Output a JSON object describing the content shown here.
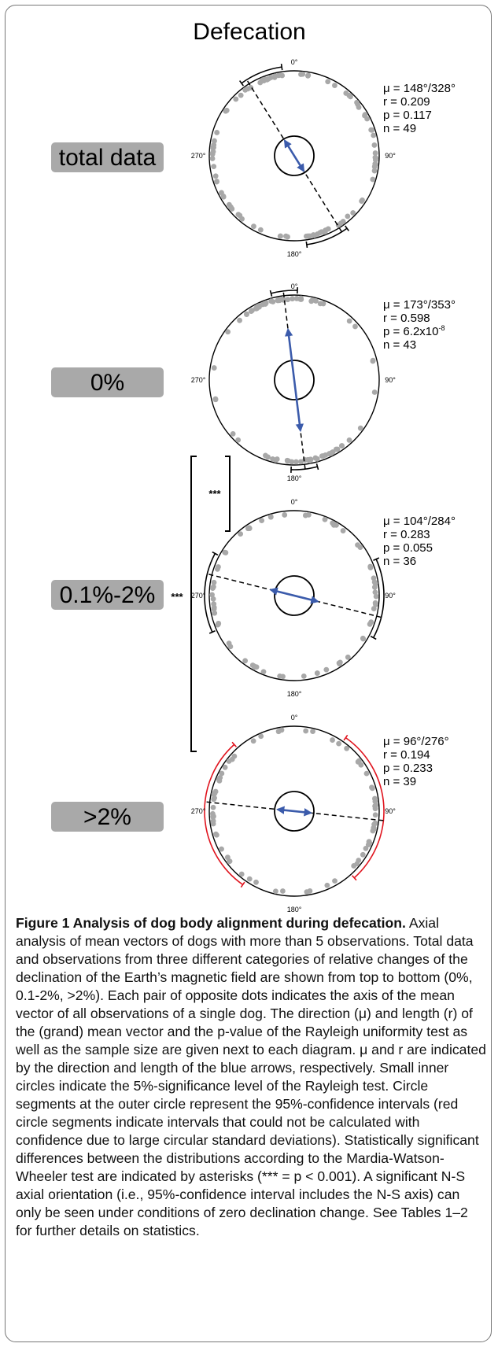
{
  "figure_title": "Defecation",
  "panels": [
    {
      "label": "total data",
      "mu": "μ = 148°/328°",
      "r": "r = 0.209",
      "p": "p = 0.117",
      "n": "n = 49",
      "axis_deg": 148,
      "vector_length": 0.209,
      "ci_deg": [
        [
          324,
          352
        ],
        [
          144,
          172
        ]
      ],
      "ci_color": "#000000"
    },
    {
      "label": "0%",
      "mu": "μ = 173°/353°",
      "r": "r = 0.598",
      "p": "p = 6.2x10",
      "p_exp": "-8",
      "n": "n = 43",
      "axis_deg": 173,
      "vector_length": 0.598,
      "ci_deg": [
        [
          345,
          2
        ],
        [
          165,
          182
        ]
      ],
      "ci_color": "#000000"
    },
    {
      "label": "0.1%-2%",
      "mu": "μ = 104°/284°",
      "r": "r = 0.283",
      "p": "p = 0.055",
      "n": "n = 36",
      "axis_deg": 104,
      "vector_length": 0.283,
      "ci_deg": [
        [
          246,
          298
        ],
        [
          66,
          118
        ]
      ],
      "ci_color": "#000000"
    },
    {
      "label": ">2%",
      "mu": "μ = 96°/276°",
      "r": "r = 0.194",
      "p": "p = 0.233",
      "n": "n = 39",
      "axis_deg": 96,
      "vector_length": 0.194,
      "ci_deg": [
        [
          215,
          318
        ],
        [
          35,
          138
        ]
      ],
      "ci_color": "#e0141e"
    }
  ],
  "compass_labels": {
    "north": "0°",
    "east": "90°",
    "south": "180°",
    "west": "270°"
  },
  "significance": {
    "short_bracket": "***",
    "long_bracket": "***"
  },
  "colors": {
    "arrow": "#3b5bab",
    "dots": "#a8a8a8",
    "label_box": "#a9a9a9",
    "ci_red": "#e0141e"
  },
  "caption": {
    "title": "Figure 1 Analysis of dog body alignment during defecation.",
    "text": "Axial analysis of mean vectors of dogs with more than 5 observations. Total data and observations from three different categories of relative changes of the declination of the Earth’s magnetic field are shown from top to bottom (0%, 0.1-2%, >2%). Each pair of opposite dots indicates the axis of the mean vector of all observations of a single dog. The direction (μ) and length (r) of the (grand) mean vector and the p-value of the Rayleigh uniformity test as well as the sample size are given next to each diagram. μ and r are indicated by the direction and length of the blue arrows, respectively. Small inner circles indicate the 5%-significance level of the Rayleigh test. Circle segments at the outer circle represent the 95%-confidence intervals (red circle segments indicate intervals that could not be calculated with confidence due to large circular standard deviations). Statistically significant differences between the distributions according to the Mardia-Watson-Wheeler test are indicated by asterisks (*** = p < 0.001). A significant N-S axial orientation (i.e., 95%-confidence interval includes the N-S axis) can only be seen under conditions of zero declination change. See Tables 1–2 for further details on statistics."
  }
}
